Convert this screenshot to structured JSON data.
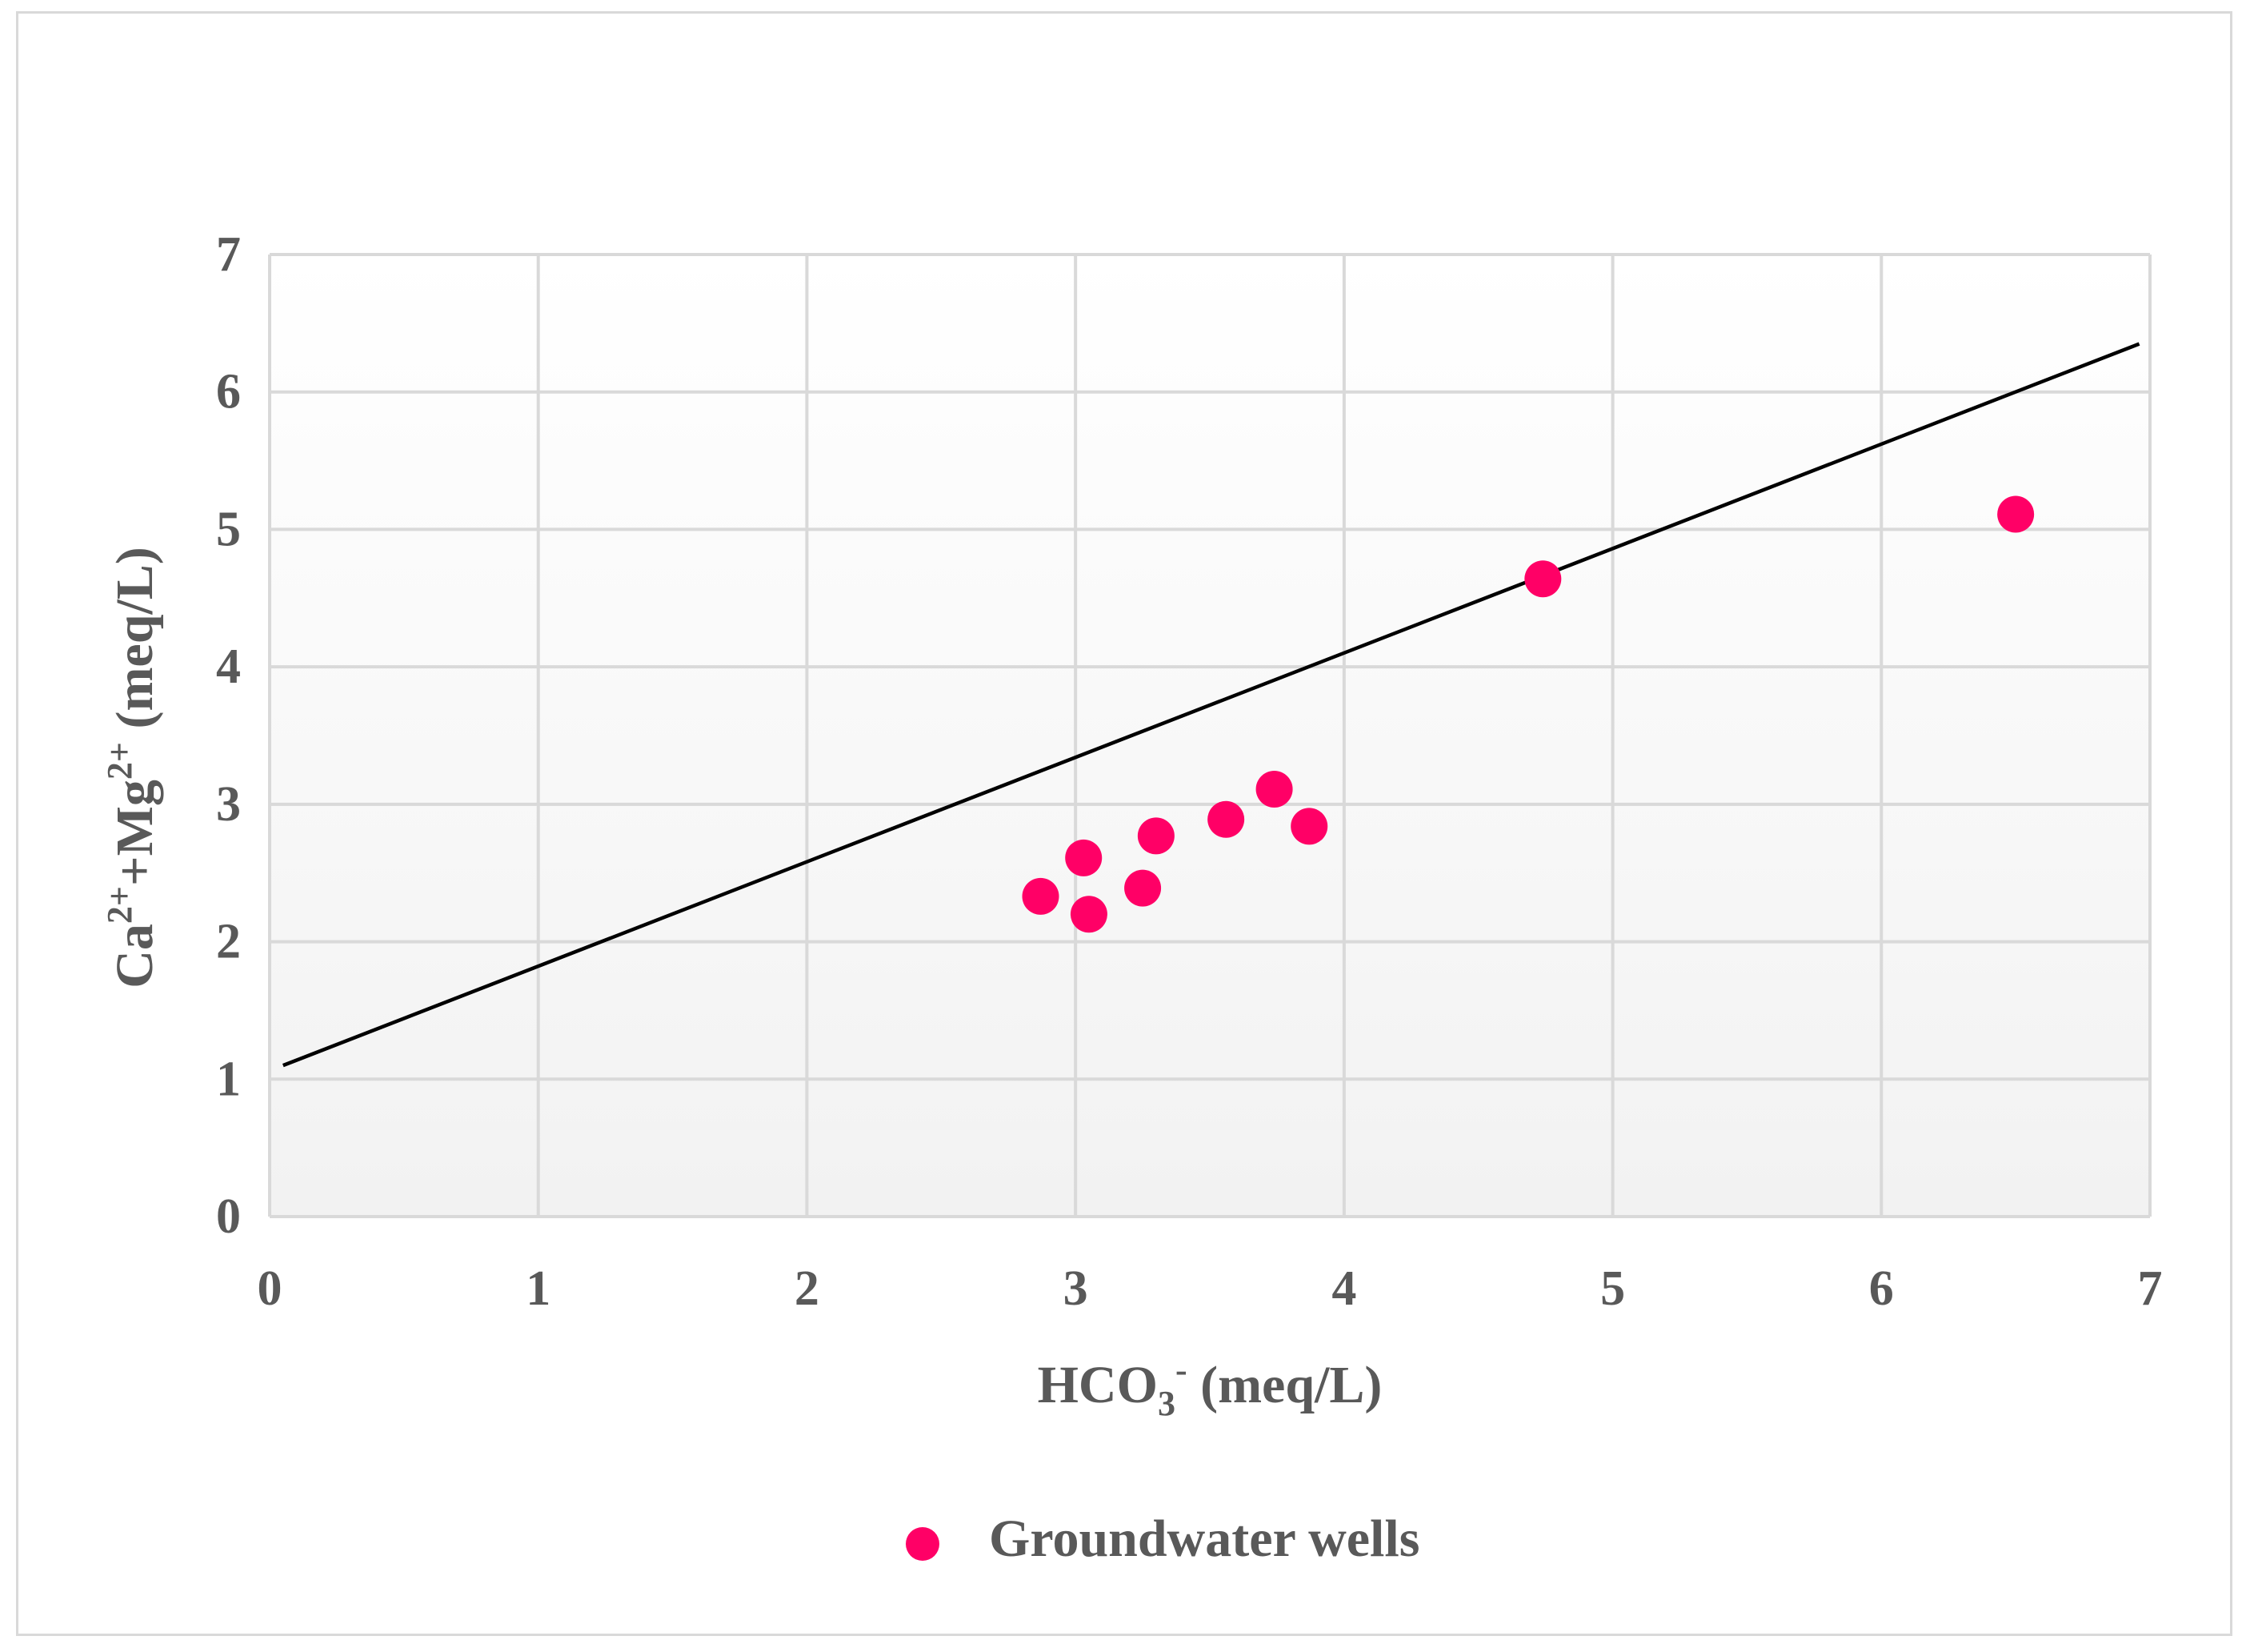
{
  "chart_data": {
    "type": "scatter",
    "title": "",
    "xlabel": "HCO3- (meq/L)",
    "xlabel_parts": {
      "base": "HCO",
      "sub": "3",
      "sup": "-",
      "unit": " (meq/L)"
    },
    "ylabel": "Ca2++Mg2+ (meq/L)",
    "ylabel_parts": {
      "a": "Ca",
      "a_sup": "2+",
      "plus": "+Mg",
      "b_sup": "2+",
      "unit": " (meq/L)"
    },
    "xlim": [
      0,
      7
    ],
    "ylim": [
      0,
      7
    ],
    "x_ticks": [
      "0",
      "1",
      "2",
      "3",
      "4",
      "5",
      "6",
      "7"
    ],
    "y_ticks": [
      "0",
      "1",
      "2",
      "3",
      "4",
      "5",
      "6",
      "7"
    ],
    "grid": true,
    "legend_position": "bottom",
    "series": [
      {
        "name": "Groundwater wells",
        "color": "#ff0066",
        "points": [
          {
            "x": 2.87,
            "y": 2.33
          },
          {
            "x": 3.03,
            "y": 2.61
          },
          {
            "x": 3.05,
            "y": 2.2
          },
          {
            "x": 3.25,
            "y": 2.39
          },
          {
            "x": 3.3,
            "y": 2.77
          },
          {
            "x": 3.56,
            "y": 2.89
          },
          {
            "x": 3.74,
            "y": 3.11
          },
          {
            "x": 3.87,
            "y": 2.84
          },
          {
            "x": 4.74,
            "y": 4.64
          },
          {
            "x": 6.5,
            "y": 5.11
          }
        ]
      }
    ],
    "trendline": {
      "color": "#000000",
      "x_start": 0.05,
      "y_start": 1.1,
      "x_end": 6.96,
      "y_end": 6.35
    },
    "colors": {
      "gridline": "#d9d9d9",
      "plot_bg_top": "#ffffff",
      "plot_bg_bottom": "#f2f2f2",
      "text": "#595959"
    }
  }
}
